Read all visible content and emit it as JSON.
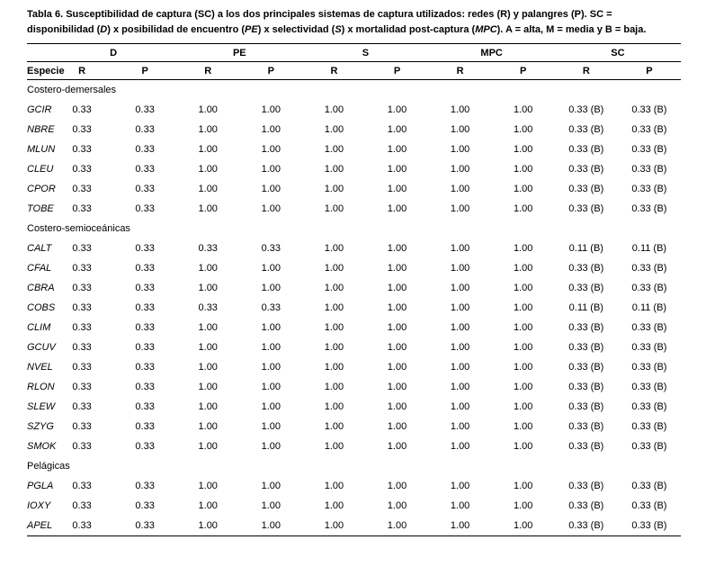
{
  "caption": {
    "segments": [
      {
        "text": "Tabla 6. Susceptibilidad de captura (SC) a los dos principales sistemas de captura utilizados: redes (R) y palangres (P). SC = disponibilidad (",
        "style": "bold"
      },
      {
        "text": "D",
        "style": "bold-italic"
      },
      {
        "text": ") x posibilidad de encuentro (",
        "style": "bold"
      },
      {
        "text": "PE",
        "style": "bold-italic"
      },
      {
        "text": ") x selectividad (",
        "style": "bold"
      },
      {
        "text": "S",
        "style": "bold-italic"
      },
      {
        "text": ") x mortalidad post-captura (",
        "style": "bold"
      },
      {
        "text": "MPC",
        "style": "bold-italic"
      },
      {
        "text": "). A = alta, M = media y B = baja.",
        "style": "bold"
      }
    ]
  },
  "table": {
    "species_header": "Especie",
    "group_headers": [
      "D",
      "PE",
      "S",
      "MPC",
      "SC"
    ],
    "sub_headers": [
      "R",
      "P",
      "R",
      "P",
      "R",
      "P",
      "R",
      "P",
      "R",
      "P"
    ],
    "groups": [
      {
        "name": "Costero-demersales",
        "rows": [
          {
            "species": "GCIR",
            "values": [
              "0.33",
              "0.33",
              "1.00",
              "1.00",
              "1.00",
              "1.00",
              "1.00",
              "1.00",
              "0.33 (B)",
              "0.33 (B)"
            ]
          },
          {
            "species": "NBRE",
            "values": [
              "0.33",
              "0.33",
              "1.00",
              "1.00",
              "1.00",
              "1.00",
              "1.00",
              "1.00",
              "0.33 (B)",
              "0.33 (B)"
            ]
          },
          {
            "species": "MLUN",
            "values": [
              "0.33",
              "0.33",
              "1.00",
              "1.00",
              "1.00",
              "1.00",
              "1.00",
              "1.00",
              "0.33 (B)",
              "0.33 (B)"
            ]
          },
          {
            "species": "CLEU",
            "values": [
              "0.33",
              "0.33",
              "1.00",
              "1.00",
              "1.00",
              "1.00",
              "1.00",
              "1.00",
              "0.33 (B)",
              "0.33 (B)"
            ]
          },
          {
            "species": "CPOR",
            "values": [
              "0.33",
              "0.33",
              "1.00",
              "1.00",
              "1.00",
              "1.00",
              "1.00",
              "1.00",
              "0.33 (B)",
              "0.33 (B)"
            ]
          },
          {
            "species": "TOBE",
            "values": [
              "0.33",
              "0.33",
              "1.00",
              "1.00",
              "1.00",
              "1.00",
              "1.00",
              "1.00",
              "0.33 (B)",
              "0.33 (B)"
            ]
          }
        ]
      },
      {
        "name": "Costero-semioceánicas",
        "rows": [
          {
            "species": "CALT",
            "values": [
              "0.33",
              "0.33",
              "0.33",
              "0.33",
              "1.00",
              "1.00",
              "1.00",
              "1.00",
              "0.11 (B)",
              "0.11 (B)"
            ]
          },
          {
            "species": "CFAL",
            "values": [
              "0.33",
              "0.33",
              "1.00",
              "1.00",
              "1.00",
              "1.00",
              "1.00",
              "1.00",
              "0.33 (B)",
              "0.33 (B)"
            ]
          },
          {
            "species": "CBRA",
            "values": [
              "0.33",
              "0.33",
              "1.00",
              "1.00",
              "1.00",
              "1.00",
              "1.00",
              "1.00",
              "0.33 (B)",
              "0.33 (B)"
            ]
          },
          {
            "species": "COBS",
            "values": [
              "0.33",
              "0.33",
              "0.33",
              "0.33",
              "1.00",
              "1.00",
              "1.00",
              "1.00",
              "0.11 (B)",
              "0.11 (B)"
            ]
          },
          {
            "species": "CLIM",
            "values": [
              "0.33",
              "0.33",
              "1.00",
              "1.00",
              "1.00",
              "1.00",
              "1.00",
              "1.00",
              "0.33 (B)",
              "0.33 (B)"
            ]
          },
          {
            "species": "GCUV",
            "values": [
              "0.33",
              "0.33",
              "1.00",
              "1.00",
              "1.00",
              "1.00",
              "1.00",
              "1.00",
              "0.33 (B)",
              "0.33 (B)"
            ]
          },
          {
            "species": "NVEL",
            "values": [
              "0.33",
              "0.33",
              "1.00",
              "1.00",
              "1.00",
              "1.00",
              "1.00",
              "1.00",
              "0.33 (B)",
              "0.33 (B)"
            ]
          },
          {
            "species": "RLON",
            "values": [
              "0.33",
              "0.33",
              "1.00",
              "1.00",
              "1.00",
              "1.00",
              "1.00",
              "1.00",
              "0.33 (B)",
              "0.33 (B)"
            ]
          },
          {
            "species": "SLEW",
            "values": [
              "0.33",
              "0.33",
              "1.00",
              "1.00",
              "1.00",
              "1.00",
              "1.00",
              "1.00",
              "0.33 (B)",
              "0.33 (B)"
            ]
          },
          {
            "species": "SZYG",
            "values": [
              "0.33",
              "0.33",
              "1.00",
              "1.00",
              "1.00",
              "1.00",
              "1.00",
              "1.00",
              "0.33 (B)",
              "0.33 (B)"
            ]
          },
          {
            "species": "SMOK",
            "values": [
              "0.33",
              "0.33",
              "1.00",
              "1.00",
              "1.00",
              "1.00",
              "1.00",
              "1.00",
              "0.33 (B)",
              "0.33 (B)"
            ]
          }
        ]
      },
      {
        "name": "Pelágicas",
        "rows": [
          {
            "species": "PGLA",
            "values": [
              "0.33",
              "0.33",
              "1.00",
              "1.00",
              "1.00",
              "1.00",
              "1.00",
              "1.00",
              "0.33 (B)",
              "0.33 (B)"
            ]
          },
          {
            "species": "IOXY",
            "values": [
              "0.33",
              "0.33",
              "1.00",
              "1.00",
              "1.00",
              "1.00",
              "1.00",
              "1.00",
              "0.33 (B)",
              "0.33 (B)"
            ]
          },
          {
            "species": "APEL",
            "values": [
              "0.33",
              "0.33",
              "1.00",
              "1.00",
              "1.00",
              "1.00",
              "1.00",
              "1.00",
              "0.33 (B)",
              "0.33 (B)"
            ]
          }
        ]
      }
    ]
  }
}
